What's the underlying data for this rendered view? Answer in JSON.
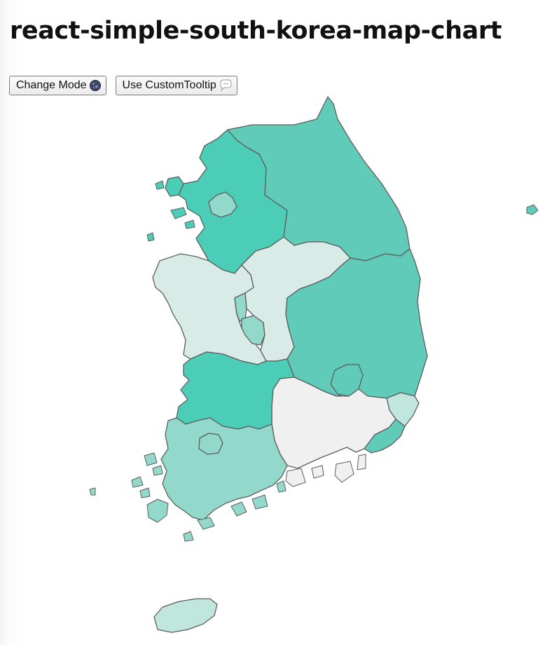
{
  "header": {
    "title": "react-simple-south-korea-map-chart"
  },
  "toolbar": {
    "change_mode_label": "Change Mode",
    "change_mode_icon": "moon-icon",
    "custom_tooltip_label": "Use CustomTooltip",
    "custom_tooltip_icon": "speech-bubble-icon"
  },
  "colors": {
    "darkest": "#4bcdb8",
    "dark": "#60cbb8",
    "mid": "#93d9cb",
    "light": "#c0e6de",
    "lightest": "#d8ebe7",
    "empty": "#f0f0f0",
    "border": "#5d5d5d"
  }
}
